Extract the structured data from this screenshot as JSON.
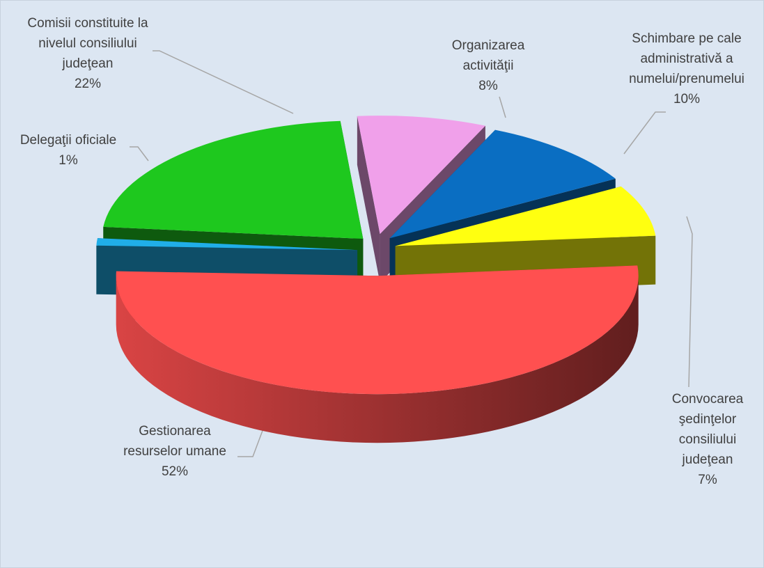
{
  "chart_data": {
    "type": "pie3d",
    "categories": [
      "Organizarea\nactivităţii",
      "Schimbare pe cale\nadministrativă a\nnumelui/prenumelui",
      "Convocarea\nşedinţelor consiliului\njudeţean",
      "Gestionarea\nresurselor umane",
      "Delegaţii oficiale",
      "Comisii constituite la\nnivelul consiliului\njudeţean"
    ],
    "values": [
      8,
      10,
      7,
      52,
      1,
      22
    ],
    "value_labels": [
      "8%",
      "10%",
      "7%",
      "52%",
      "1%",
      "22%"
    ],
    "colors": [
      "#f0a0ea",
      "#0a6ec2",
      "#ffff10",
      "#ff5050",
      "#20aee8",
      "#1ec81e"
    ]
  }
}
